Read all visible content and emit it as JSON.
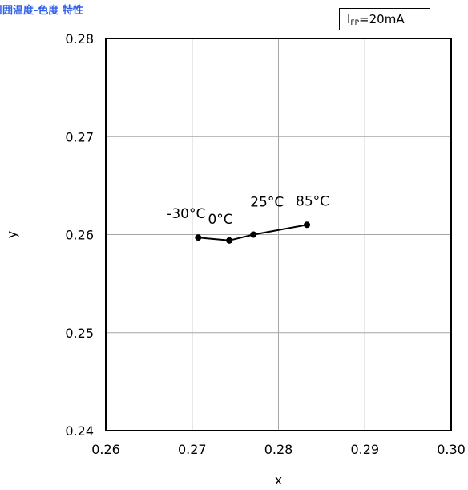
{
  "chart_data": {
    "type": "line",
    "title": "周囲温度-色度 特性",
    "condition": {
      "symbol_main": "I",
      "symbol_sub": "FP",
      "value": "=20mA"
    },
    "xlabel": "x",
    "ylabel": "y",
    "xlim": [
      0.26,
      0.3
    ],
    "ylim": [
      0.24,
      0.28
    ],
    "x_ticks": [
      "0.26",
      "0.27",
      "0.28",
      "0.29",
      "0.30"
    ],
    "y_ticks": [
      "0.24",
      "0.25",
      "0.26",
      "0.27",
      "0.28"
    ],
    "grid": true,
    "series": [
      {
        "x": [
          0.2707,
          0.2743,
          0.2771,
          0.2833
        ],
        "y": [
          0.2597,
          0.2594,
          0.26,
          0.261
        ],
        "point_labels": [
          "-30°C",
          "0°C",
          "25°C",
          "85°C"
        ]
      }
    ]
  },
  "colors": {
    "title": "#2f5fe8",
    "grid": "#a6a6a6",
    "line": "#000000"
  }
}
